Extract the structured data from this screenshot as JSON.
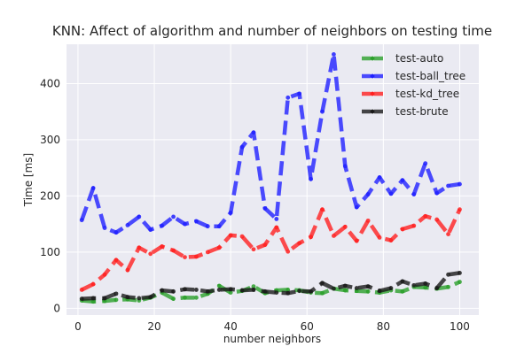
{
  "chart_data": {
    "type": "line",
    "title": "KNN: Affect of algorithm and number of neighbors on testing time",
    "xlabel": "number neighbors",
    "ylabel": "Time [ms]",
    "xlim": [
      -3,
      105
    ],
    "ylim": [
      -12,
      470
    ],
    "xticks": [
      0,
      20,
      40,
      60,
      80,
      100
    ],
    "yticks": [
      0,
      100,
      200,
      300,
      400
    ],
    "grid": true,
    "legend": "top-right",
    "x": [
      1,
      4,
      7,
      10,
      13,
      16,
      19,
      22,
      25,
      28,
      31,
      34,
      37,
      40,
      43,
      46,
      49,
      52,
      55,
      58,
      61,
      64,
      67,
      70,
      73,
      76,
      79,
      82,
      85,
      88,
      91,
      94,
      97,
      100
    ],
    "series": [
      {
        "name": "test-auto",
        "color": "#2ca02c",
        "values": [
          14,
          12,
          13,
          15,
          16,
          14,
          19,
          28,
          17,
          19,
          19,
          26,
          40,
          28,
          31,
          39,
          27,
          32,
          33,
          32,
          28,
          27,
          35,
          32,
          31,
          30,
          28,
          32,
          30,
          38,
          37,
          35,
          38,
          47
        ]
      },
      {
        "name": "test-ball_tree",
        "color": "#2020ff",
        "values": [
          157,
          214,
          143,
          135,
          148,
          163,
          140,
          147,
          163,
          150,
          155,
          146,
          146,
          170,
          287,
          313,
          178,
          159,
          375,
          382,
          230,
          350,
          452,
          253,
          180,
          203,
          233,
          204,
          228,
          203,
          258,
          205,
          218,
          221
        ]
      },
      {
        "name": "test-kd_tree",
        "color": "#ff2020",
        "values": [
          33,
          43,
          60,
          86,
          68,
          108,
          97,
          110,
          103,
          91,
          92,
          100,
          108,
          130,
          128,
          105,
          113,
          144,
          101,
          116,
          127,
          176,
          129,
          145,
          120,
          156,
          126,
          121,
          141,
          147,
          164,
          158,
          132,
          176
        ]
      },
      {
        "name": "test-brute",
        "color": "#1a1a1a",
        "values": [
          17,
          18,
          18,
          26,
          20,
          18,
          20,
          32,
          30,
          34,
          33,
          30,
          33,
          34,
          32,
          33,
          30,
          28,
          27,
          31,
          30,
          45,
          35,
          40,
          36,
          39,
          31,
          36,
          48,
          41,
          44,
          36,
          60,
          63
        ]
      }
    ]
  }
}
